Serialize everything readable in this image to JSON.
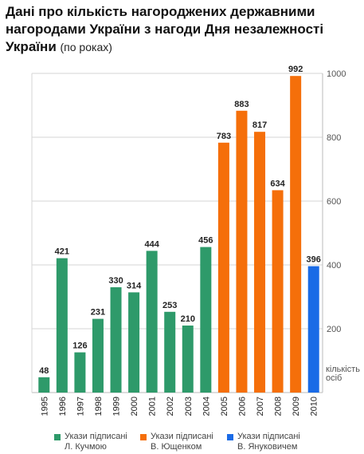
{
  "header": {
    "title": "Дані про кількість нагороджених державними нагородами України з нагоди Дня незалежності України",
    "subtitle": "(по роках)"
  },
  "chart_data": {
    "type": "bar",
    "categories": [
      "1995",
      "1996",
      "1997",
      "1998",
      "1999",
      "2000",
      "2001",
      "2002",
      "2003",
      "2004",
      "2005",
      "2006",
      "2007",
      "2008",
      "2009",
      "2010"
    ],
    "values": [
      48,
      421,
      126,
      231,
      330,
      314,
      444,
      253,
      210,
      456,
      783,
      883,
      817,
      634,
      992,
      396
    ],
    "groups": [
      0,
      0,
      0,
      0,
      0,
      0,
      0,
      0,
      0,
      0,
      1,
      1,
      1,
      1,
      1,
      2
    ],
    "series": [
      {
        "name": "Укази підписані\nЛ. Кучмою",
        "color": "#2e9a6a"
      },
      {
        "name": "Укази підписані\nВ. Ющенком",
        "color": "#f56f0a"
      },
      {
        "name": "Укази підписані\nВ. Януковичем",
        "color": "#1a6be6"
      }
    ],
    "ylim": [
      0,
      1000
    ],
    "yticks": [
      200,
      400,
      600,
      800,
      1000
    ],
    "ylabel": "кількість\nосіб",
    "grid": true,
    "legend_position": "bottom"
  }
}
